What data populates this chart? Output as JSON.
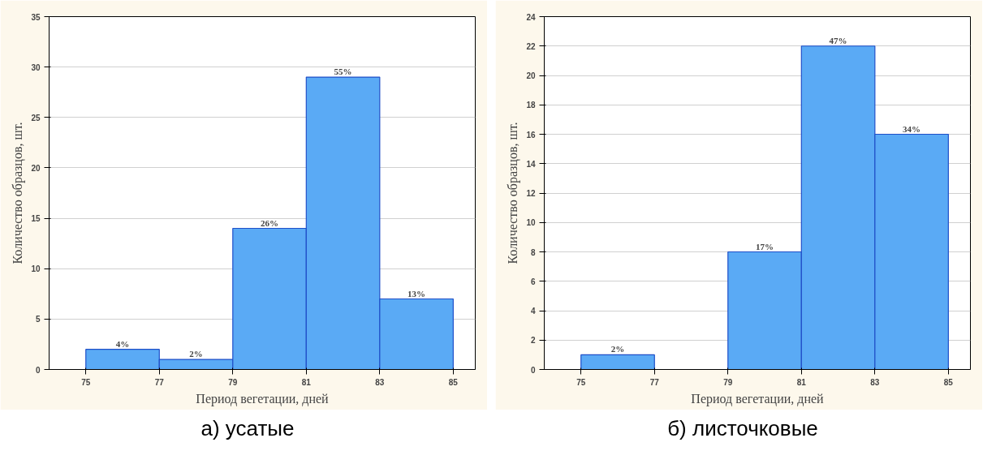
{
  "chart_data": [
    {
      "type": "histogram",
      "bins": [
        75,
        77,
        79,
        81,
        83,
        85
      ],
      "values": [
        2,
        1,
        14,
        29,
        7
      ],
      "color": "#5aaaf5",
      "xlim": [
        74,
        85.6
      ],
      "xticks": [
        75,
        77,
        79,
        81,
        83,
        85
      ],
      "ylim": [
        0,
        35
      ],
      "yticks": [
        0,
        5,
        10,
        15,
        20,
        25,
        30,
        35
      ],
      "grid": "y",
      "xlabel": "Период вегетации, дней",
      "ylabel": "Количество образцов, шт.",
      "annotations": [
        {
          "text": "4%",
          "x": 76,
          "y": 2
        },
        {
          "text": "2%",
          "x": 78,
          "y": 1
        },
        {
          "text": "26%",
          "x": 80,
          "y": 14
        },
        {
          "text": "55%",
          "x": 82,
          "y": 29
        },
        {
          "text": "13%",
          "x": 84,
          "y": 7
        },
        "а) усатые"
      ]
    },
    {
      "type": "histogram",
      "bins": [
        75,
        77,
        79,
        81,
        83,
        85
      ],
      "values": [
        1,
        null,
        8,
        22,
        16
      ],
      "color": "#5aaaf5",
      "xlim": [
        74,
        85.6
      ],
      "xticks": [
        75,
        77,
        79,
        81,
        83,
        85
      ],
      "ylim": [
        0,
        24
      ],
      "yticks": [
        0,
        2,
        4,
        6,
        8,
        10,
        12,
        14,
        16,
        18,
        20,
        22,
        24
      ],
      "grid": "y",
      "xlabel": "Период вегетации, дней",
      "ylabel": "Количество образцов, шт.",
      "annotations": [
        {
          "text": "2%",
          "x": 76,
          "y": 1
        },
        {
          "text": "17%",
          "x": 80,
          "y": 8
        },
        {
          "text": "47%",
          "x": 82,
          "y": 22
        },
        {
          "text": "34%",
          "x": 84,
          "y": 16
        },
        "б) листочковые"
      ]
    }
  ]
}
